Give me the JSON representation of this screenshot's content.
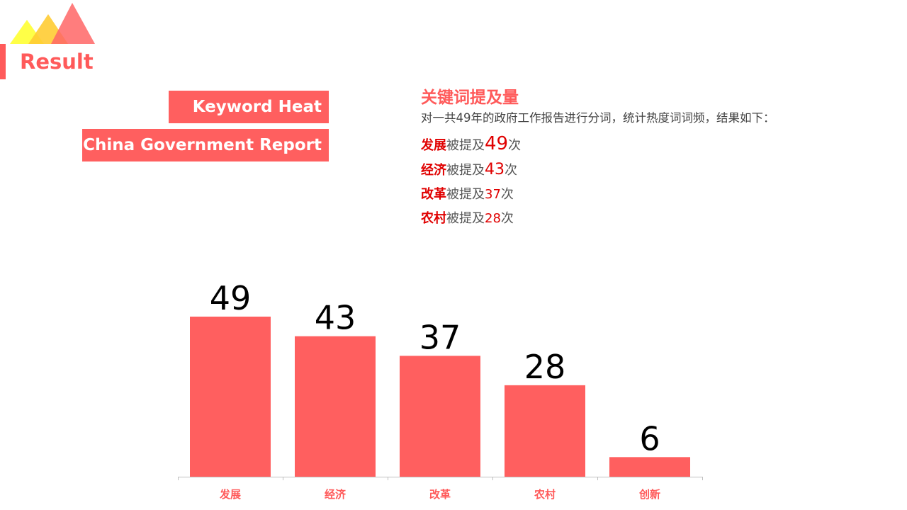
{
  "header": {
    "title": "Result"
  },
  "tags": {
    "keyword_heat": "Keyword Heat",
    "report": "China Government Report"
  },
  "info": {
    "heading": "关键词提及量",
    "description": "对一共49年的政府工作报告进行分词，统计热度词词频，结果如下：",
    "mention_prefix": "被提及",
    "mention_suffix": "次",
    "stats": [
      {
        "keyword": "发展",
        "count": "49"
      },
      {
        "keyword": "经济",
        "count": "43"
      },
      {
        "keyword": "改革",
        "count": "37"
      },
      {
        "keyword": "农村",
        "count": "28"
      }
    ]
  },
  "colors": {
    "accent": "#ff5a5a",
    "bar": "#ff5f5f",
    "highlight": "#e00000"
  },
  "chart_data": {
    "type": "bar",
    "categories": [
      "发展",
      "经济",
      "改革",
      "农村",
      "创新"
    ],
    "values": [
      49,
      43,
      37,
      28,
      6
    ],
    "ylim": [
      0,
      49
    ],
    "grid": false,
    "legend": "none",
    "data_labels": true
  }
}
